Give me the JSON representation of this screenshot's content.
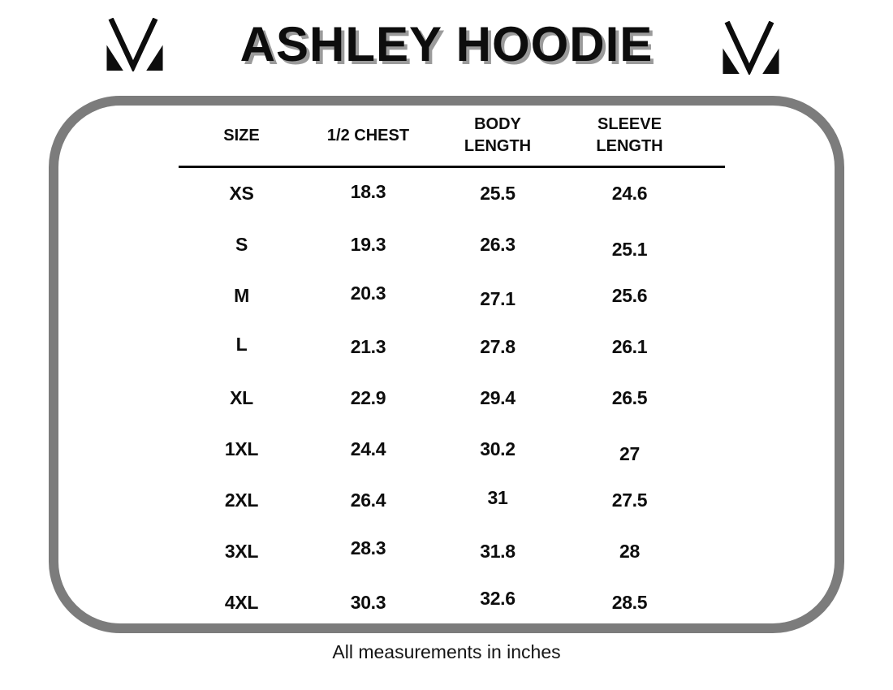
{
  "title": "ASHLEY HOODIE",
  "brand": {
    "logo_icon": "m-monogram-logo"
  },
  "table": {
    "headers": [
      "SIZE",
      "1/2 CHEST",
      "BODY\nLENGTH",
      "SLEEVE\nLENGTH"
    ],
    "rows": [
      {
        "size": "XS",
        "half_chest": "18.3",
        "body_length": "25.5",
        "sleeve_length": "24.6"
      },
      {
        "size": "S",
        "half_chest": "19.3",
        "body_length": "26.3",
        "sleeve_length": "25.1"
      },
      {
        "size": "M",
        "half_chest": "20.3",
        "body_length": "27.1",
        "sleeve_length": "25.6"
      },
      {
        "size": "L",
        "half_chest": "21.3",
        "body_length": "27.8",
        "sleeve_length": "26.1"
      },
      {
        "size": "XL",
        "half_chest": "22.9",
        "body_length": "29.4",
        "sleeve_length": "26.5"
      },
      {
        "size": "1XL",
        "half_chest": "24.4",
        "body_length": "30.2",
        "sleeve_length": "27"
      },
      {
        "size": "2XL",
        "half_chest": "26.4",
        "body_length": "31",
        "sleeve_length": "27.5"
      },
      {
        "size": "3XL",
        "half_chest": "28.3",
        "body_length": "31.8",
        "sleeve_length": "28"
      },
      {
        "size": "4XL",
        "half_chest": "30.3",
        "body_length": "32.6",
        "sleeve_length": "28.5"
      }
    ]
  },
  "footer": "All measurements in inches",
  "colors": {
    "text": "#0d0d0d",
    "title_shadow": "#9b9b9b",
    "board_border": "#7c7c7c",
    "background": "#ffffff"
  }
}
